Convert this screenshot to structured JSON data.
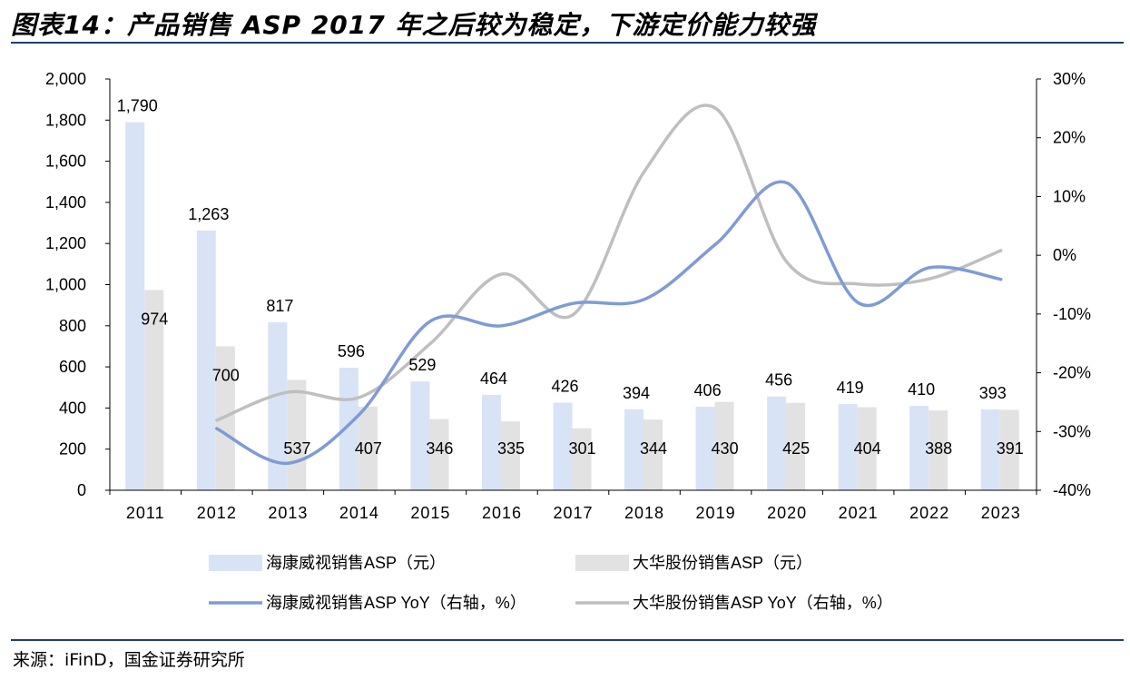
{
  "title": "图表14：产品销售 ASP 2017 年之后较为稳定，下游定价能力较强",
  "source": "来源：iFinD，国金证券研究所",
  "chart_data": {
    "type": "bar",
    "categories": [
      "2011",
      "2012",
      "2013",
      "2014",
      "2015",
      "2016",
      "2017",
      "2018",
      "2019",
      "2020",
      "2021",
      "2022",
      "2023"
    ],
    "series": [
      {
        "name": "海康威视销售ASP（元）",
        "kind": "bar",
        "axis": "left",
        "color": "#d9e3f6",
        "values": [
          1790,
          1263,
          817,
          596,
          529,
          464,
          426,
          394,
          406,
          456,
          419,
          410,
          393
        ]
      },
      {
        "name": "大华股份销售ASP（元）",
        "kind": "bar",
        "axis": "left",
        "color": "#e2e2e2",
        "values": [
          974,
          700,
          537,
          407,
          346,
          335,
          301,
          344,
          430,
          425,
          404,
          388,
          391
        ]
      },
      {
        "name": "海康威视销售ASP  YoY（右轴，%）",
        "kind": "line",
        "axis": "right",
        "color": "#7f9bd6",
        "values": [
          null,
          -29.5,
          -35.4,
          -27.1,
          -11.2,
          -12.0,
          -8.2,
          -7.5,
          1.9,
          12.3,
          -8.1,
          -2.1,
          -4.1
        ]
      },
      {
        "name": "大华股份销售ASP  YoY（右轴，%）",
        "kind": "line",
        "axis": "right",
        "color": "#bfbfbf",
        "values": [
          null,
          -28.1,
          -23.3,
          -24.2,
          -15.0,
          -3.2,
          -10.1,
          14.3,
          25.0,
          -1.2,
          -4.9,
          -4.0,
          0.8
        ]
      }
    ],
    "ylim": [
      0,
      2000
    ],
    "yticks": [
      "0",
      "200",
      "400",
      "600",
      "800",
      "1,000",
      "1,200",
      "1,400",
      "1,600",
      "1,800",
      "2,000"
    ],
    "y2lim": [
      -40,
      30
    ],
    "y2ticks": [
      "-40%",
      "-30%",
      "-20%",
      "-10%",
      "0%",
      "10%",
      "20%",
      "30%"
    ],
    "bar_labels_hik": [
      "1,790",
      "1,263",
      "817",
      "596",
      "529",
      "464",
      "426",
      "394",
      "406",
      "456",
      "419",
      "410",
      "393"
    ],
    "bar_labels_dahua": [
      "974",
      "700",
      "537",
      "407",
      "346",
      "335",
      "301",
      "344",
      "430",
      "425",
      "404",
      "388",
      "391"
    ],
    "legend_position": "bottom",
    "grid": false
  }
}
